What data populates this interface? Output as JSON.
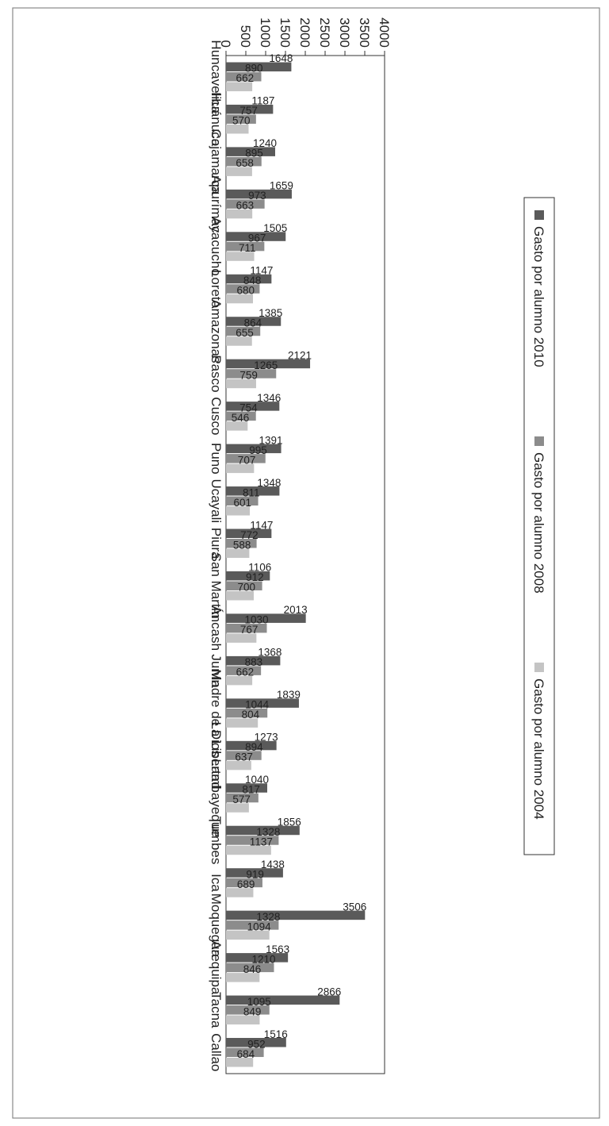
{
  "chart_data": {
    "type": "bar",
    "orientation": "rotated-90",
    "categories": [
      "Huncavelica",
      "Huánuco",
      "Cajamarca",
      "Apurímac",
      "Ayacucho",
      "Loreto",
      "Amazonas",
      "Pasco",
      "Cusco",
      "Puno",
      "Ucayali",
      "Piura",
      "San Martín",
      "Áncash",
      "Junín",
      "Madre de Dios",
      "La Libertad",
      "Lambayeque",
      "Tumbes",
      "Ica",
      "Moquegua",
      "Arequipa",
      "Tacna",
      "Callao"
    ],
    "series": [
      {
        "name": "Gasto por alumno 2010",
        "color": "#5a5a5a",
        "values": [
          1648,
          1187,
          1240,
          1659,
          1505,
          1147,
          1385,
          2121,
          1346,
          1391,
          1348,
          1147,
          1106,
          2013,
          1368,
          1839,
          1273,
          1040,
          1856,
          1438,
          3506,
          1563,
          2866,
          1516
        ]
      },
      {
        "name": "Gasto por alumno 2008",
        "color": "#8c8c8c",
        "values": [
          890,
          757,
          895,
          973,
          967,
          848,
          864,
          1265,
          754,
          995,
          811,
          772,
          912,
          1030,
          883,
          1044,
          894,
          817,
          1328,
          919,
          1328,
          1210,
          1095,
          952
        ]
      },
      {
        "name": "Gasto por alumno 2004",
        "color": "#c4c4c4",
        "values": [
          662,
          570,
          658,
          663,
          711,
          680,
          655,
          759,
          546,
          707,
          601,
          588,
          700,
          767,
          662,
          804,
          637,
          577,
          1137,
          689,
          1094,
          846,
          849,
          684
        ]
      }
    ],
    "y_ticks": [
      "0",
      "500",
      "1000",
      "1500",
      "2000",
      "2500",
      "3000",
      "3500",
      "4000"
    ],
    "ylim": [
      0,
      4000
    ],
    "grid": false,
    "legend_position": "right"
  }
}
